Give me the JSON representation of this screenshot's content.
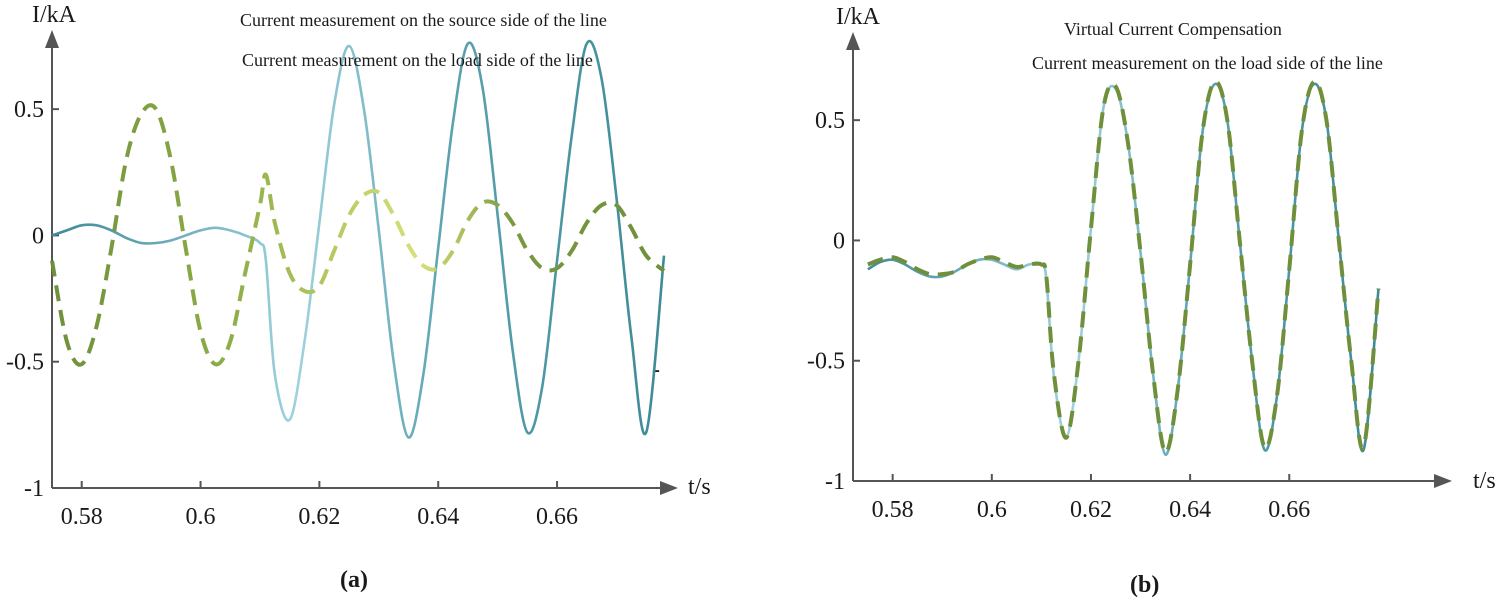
{
  "colors": {
    "axis": "#555555",
    "source_dashed": "#6f8f3a",
    "source_dashed_light": "#d8e07a",
    "load_solid": "#3e8a98",
    "load_solid_light": "#9fd2de",
    "compensation_dashed": "#6f8f3a"
  },
  "chart_data": [
    {
      "type": "line",
      "panel_label": "(a)",
      "ylabel": "I/kA",
      "xlabel": "t/s",
      "xlim": [
        0.575,
        0.678
      ],
      "ylim": [
        -1,
        0.75
      ],
      "xticks": [
        0.58,
        0.6,
        0.62,
        0.64,
        0.66
      ],
      "xtick_labels": [
        "0.58",
        "0.6",
        "0.62",
        "0.64",
        "0.66"
      ],
      "yticks": [
        -1,
        -0.5,
        0,
        0.5
      ],
      "ytick_labels": [
        "-1",
        "-0.5",
        "0",
        "0.5"
      ],
      "grid": false,
      "legend_position": "top",
      "series": [
        {
          "name": "Current measurement on the source side of the line",
          "style": "dashed",
          "x": [
            0.575,
            0.5775,
            0.58,
            0.5825,
            0.585,
            0.5875,
            0.59,
            0.5925,
            0.595,
            0.5975,
            0.6,
            0.6025,
            0.605,
            0.6075,
            0.61,
            0.611,
            0.6125,
            0.615,
            0.6175,
            0.62,
            0.6225,
            0.625,
            0.6275,
            0.63,
            0.6325,
            0.635,
            0.6375,
            0.64,
            0.6425,
            0.645,
            0.6475,
            0.65,
            0.6525,
            0.655,
            0.6575,
            0.66,
            0.6625,
            0.665,
            0.6675,
            0.67,
            0.6725,
            0.675,
            0.678
          ],
          "y": [
            -0.1,
            -0.42,
            -0.51,
            -0.36,
            -0.05,
            0.3,
            0.48,
            0.5,
            0.3,
            -0.05,
            -0.38,
            -0.51,
            -0.42,
            -0.15,
            0.12,
            0.24,
            0.05,
            -0.15,
            -0.22,
            -0.2,
            -0.06,
            0.08,
            0.16,
            0.17,
            0.08,
            -0.04,
            -0.12,
            -0.13,
            -0.06,
            0.06,
            0.13,
            0.12,
            0.05,
            -0.06,
            -0.13,
            -0.13,
            -0.06,
            0.05,
            0.12,
            0.12,
            0.03,
            -0.08,
            -0.14
          ]
        },
        {
          "name": "Current measurement on the load side of the line",
          "style": "solid",
          "x": [
            0.575,
            0.5775,
            0.58,
            0.5825,
            0.585,
            0.5875,
            0.59,
            0.5925,
            0.595,
            0.5975,
            0.6,
            0.6025,
            0.605,
            0.6075,
            0.61,
            0.611,
            0.6125,
            0.615,
            0.6175,
            0.62,
            0.6225,
            0.625,
            0.6275,
            0.63,
            0.6325,
            0.635,
            0.6375,
            0.64,
            0.6425,
            0.645,
            0.6475,
            0.65,
            0.6525,
            0.655,
            0.6575,
            0.66,
            0.6625,
            0.665,
            0.6675,
            0.67,
            0.6725,
            0.675,
            0.678
          ],
          "y": [
            0.0,
            0.02,
            0.04,
            0.04,
            0.02,
            -0.01,
            -0.03,
            -0.03,
            -0.02,
            0.0,
            0.02,
            0.03,
            0.02,
            0.0,
            -0.03,
            -0.1,
            -0.55,
            -0.73,
            -0.42,
            0.05,
            0.52,
            0.75,
            0.5,
            0.02,
            -0.5,
            -0.8,
            -0.55,
            -0.05,
            0.45,
            0.76,
            0.58,
            0.08,
            -0.45,
            -0.78,
            -0.6,
            -0.1,
            0.4,
            0.76,
            0.62,
            0.15,
            -0.4,
            -0.78,
            -0.08
          ]
        }
      ]
    },
    {
      "type": "line",
      "panel_label": "(b)",
      "ylabel": "I/kA",
      "xlabel": "t/s",
      "xlim": [
        0.572,
        0.69
      ],
      "ylim": [
        -1,
        0.8
      ],
      "xticks": [
        0.58,
        0.6,
        0.62,
        0.64,
        0.66
      ],
      "xtick_labels": [
        "0.58",
        "0.6",
        "0.62",
        "0.64",
        "0.66"
      ],
      "yticks": [
        -1,
        -0.5,
        0,
        0.5
      ],
      "ytick_labels": [
        "-1",
        "-0.5",
        "0",
        "0.5"
      ],
      "grid": false,
      "legend_position": "top",
      "series": [
        {
          "name": "Virtual Current Compensation",
          "style": "dashed",
          "x": [
            0.575,
            0.5775,
            0.58,
            0.5825,
            0.585,
            0.5875,
            0.59,
            0.5925,
            0.595,
            0.5975,
            0.6,
            0.6025,
            0.605,
            0.6075,
            0.61,
            0.611,
            0.6125,
            0.615,
            0.6175,
            0.62,
            0.6225,
            0.625,
            0.6275,
            0.63,
            0.6325,
            0.635,
            0.6375,
            0.64,
            0.6425,
            0.645,
            0.6475,
            0.65,
            0.6525,
            0.655,
            0.6575,
            0.66,
            0.6625,
            0.665,
            0.6675,
            0.67,
            0.6725,
            0.675,
            0.678
          ],
          "y": [
            -0.1,
            -0.08,
            -0.07,
            -0.09,
            -0.12,
            -0.14,
            -0.14,
            -0.13,
            -0.1,
            -0.08,
            -0.07,
            -0.09,
            -0.11,
            -0.1,
            -0.1,
            -0.15,
            -0.55,
            -0.82,
            -0.5,
            0.05,
            0.55,
            0.64,
            0.4,
            -0.05,
            -0.55,
            -0.88,
            -0.62,
            -0.1,
            0.45,
            0.66,
            0.5,
            0.0,
            -0.5,
            -0.86,
            -0.65,
            -0.12,
            0.45,
            0.66,
            0.5,
            0.0,
            -0.5,
            -0.86,
            -0.2
          ]
        },
        {
          "name": "Current measurement on the load side of the line",
          "style": "solid",
          "x": [
            0.575,
            0.5775,
            0.58,
            0.5825,
            0.585,
            0.5875,
            0.59,
            0.5925,
            0.595,
            0.5975,
            0.6,
            0.6025,
            0.605,
            0.6075,
            0.61,
            0.611,
            0.6125,
            0.615,
            0.6175,
            0.62,
            0.6225,
            0.625,
            0.6275,
            0.63,
            0.6325,
            0.635,
            0.6375,
            0.64,
            0.6425,
            0.645,
            0.6475,
            0.65,
            0.6525,
            0.655,
            0.6575,
            0.66,
            0.6625,
            0.665,
            0.6675,
            0.67,
            0.6725,
            0.675,
            0.678
          ],
          "y": [
            -0.12,
            -0.09,
            -0.08,
            -0.1,
            -0.13,
            -0.15,
            -0.15,
            -0.13,
            -0.1,
            -0.08,
            -0.08,
            -0.1,
            -0.12,
            -0.1,
            -0.1,
            -0.16,
            -0.56,
            -0.82,
            -0.5,
            0.05,
            0.55,
            0.63,
            0.4,
            -0.05,
            -0.55,
            -0.89,
            -0.62,
            -0.1,
            0.45,
            0.65,
            0.5,
            0.0,
            -0.5,
            -0.87,
            -0.65,
            -0.12,
            0.45,
            0.65,
            0.5,
            0.0,
            -0.5,
            -0.87,
            -0.2
          ]
        }
      ]
    }
  ]
}
